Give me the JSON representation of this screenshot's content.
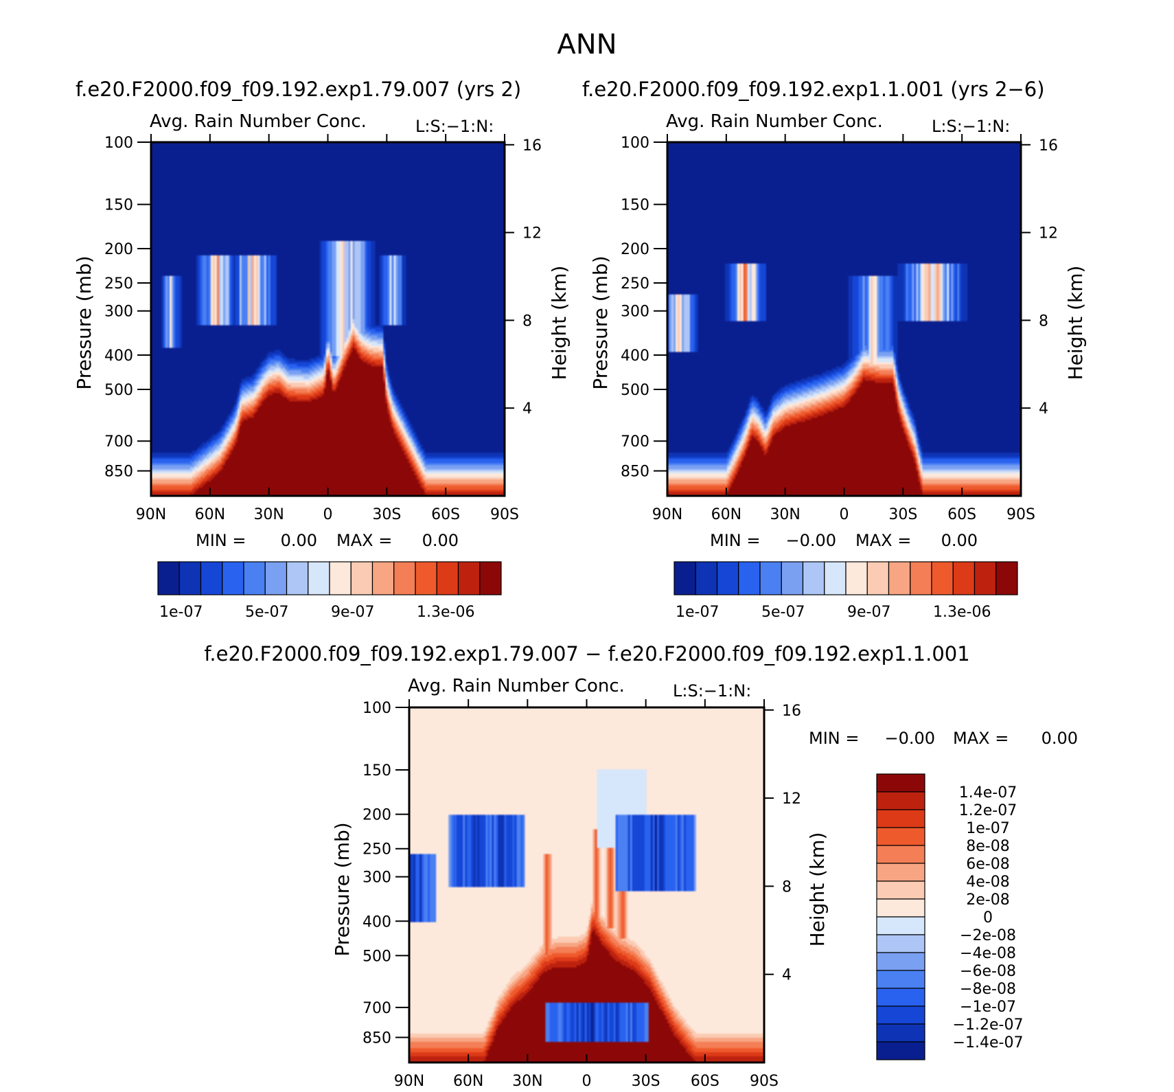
{
  "figure_title": "ANN",
  "chart_data": [
    {
      "type": "heatmap",
      "run_title": "f.e20.F2000.f09_f09.192.exp1.79.007 (yrs 2)",
      "subtitle": "Avg. Rain Number Conc.",
      "corner_label": "L:S:−1:N:",
      "xlabel": "",
      "ylabel": "Pressure (mb)",
      "ylabel_right": "Height (km)",
      "x_ticks": [
        "90N",
        "60N",
        "30N",
        "0",
        "30S",
        "60S",
        "90S"
      ],
      "y_ticks": [
        100,
        150,
        200,
        250,
        300,
        400,
        500,
        700,
        850
      ],
      "ylim": [
        100,
        1000
      ],
      "height_ticks": [
        16,
        12,
        8,
        4
      ],
      "stats": {
        "min_label": "MIN =",
        "min": "0.00",
        "max_label": "MAX =",
        "max": "0.00"
      },
      "colorbar": {
        "orientation": "horizontal",
        "tick_labels": [
          "1e-07",
          "5e-07",
          "9e-07",
          "1.3e-06"
        ],
        "colors": [
          "#0a1f8f",
          "#0e34b5",
          "#1546d6",
          "#2a62f0",
          "#4a80f2",
          "#7aa0f2",
          "#adc6f6",
          "#d6e6fb",
          "#fde8dc",
          "#fbcbb3",
          "#f8a583",
          "#f47e55",
          "#ef5a2d",
          "#dd3a18",
          "#bd220f",
          "#8c0808"
        ]
      },
      "field": {
        "base": "low",
        "core_levels_by_latitude": [
          [
            -90,
            1000
          ],
          [
            -70,
            1000
          ],
          [
            -55,
            860
          ],
          [
            -47,
            720
          ],
          [
            -44,
            620
          ],
          [
            -38,
            600
          ],
          [
            -33,
            545
          ],
          [
            -30,
            520
          ],
          [
            -25,
            510
          ],
          [
            -20,
            540
          ],
          [
            -10,
            545
          ],
          [
            -2,
            520
          ],
          [
            0,
            430
          ],
          [
            3,
            520
          ],
          [
            8,
            440
          ],
          [
            13,
            380
          ],
          [
            17,
            415
          ],
          [
            22,
            430
          ],
          [
            28,
            435
          ],
          [
            30,
            560
          ],
          [
            33,
            650
          ],
          [
            38,
            740
          ],
          [
            43,
            840
          ],
          [
            50,
            1000
          ],
          [
            90,
            1000
          ]
        ],
        "bands": [
          {
            "lat_center": -80,
            "lat_width": 6,
            "p_top": 240,
            "p_bottom": 380,
            "intensity": 0.55
          },
          {
            "lat_center": -56,
            "lat_width": 12,
            "p_top": 210,
            "p_bottom": 330,
            "intensity": 0.75
          },
          {
            "lat_center": -38,
            "lat_width": 14,
            "p_top": 210,
            "p_bottom": 330,
            "intensity": 0.7
          },
          {
            "lat_center": 10,
            "lat_width": 16,
            "p_top": 190,
            "p_bottom": 400,
            "intensity": 0.7
          },
          {
            "lat_center": 33,
            "lat_width": 8,
            "p_top": 210,
            "p_bottom": 330,
            "intensity": 0.55
          }
        ]
      }
    },
    {
      "type": "heatmap",
      "run_title": "f.e20.F2000.f09_f09.192.exp1.1.001 (yrs 2−6)",
      "subtitle": "Avg. Rain Number Conc.",
      "corner_label": "L:S:−1:N:",
      "xlabel": "",
      "ylabel": "Pressure (mb)",
      "ylabel_right": "Height (km)",
      "x_ticks": [
        "90N",
        "60N",
        "30N",
        "0",
        "30S",
        "60S",
        "90S"
      ],
      "y_ticks": [
        100,
        150,
        200,
        250,
        300,
        400,
        500,
        700,
        850
      ],
      "ylim": [
        100,
        1000
      ],
      "height_ticks": [
        16,
        12,
        8,
        4
      ],
      "stats": {
        "min_label": "MIN =",
        "min": "−0.00",
        "max_label": "MAX =",
        "max": "0.00"
      },
      "colorbar": {
        "orientation": "horizontal",
        "tick_labels": [
          "1e-07",
          "5e-07",
          "9e-07",
          "1.3e-06"
        ],
        "colors": [
          "#0a1f8f",
          "#0e34b5",
          "#1546d6",
          "#2a62f0",
          "#4a80f2",
          "#7aa0f2",
          "#adc6f6",
          "#d6e6fb",
          "#fde8dc",
          "#fbcbb3",
          "#f8a583",
          "#f47e55",
          "#ef5a2d",
          "#dd3a18",
          "#bd220f",
          "#8c0808"
        ]
      },
      "field": {
        "base": "low",
        "core_levels_by_latitude": [
          [
            -90,
            1000
          ],
          [
            -60,
            1000
          ],
          [
            -50,
            760
          ],
          [
            -47,
            680
          ],
          [
            -44,
            700
          ],
          [
            -40,
            770
          ],
          [
            -36,
            680
          ],
          [
            -30,
            640
          ],
          [
            -20,
            615
          ],
          [
            -10,
            590
          ],
          [
            0,
            560
          ],
          [
            5,
            520
          ],
          [
            10,
            470
          ],
          [
            18,
            480
          ],
          [
            25,
            480
          ],
          [
            28,
            600
          ],
          [
            32,
            700
          ],
          [
            36,
            800
          ],
          [
            40,
            1000
          ],
          [
            90,
            1000
          ]
        ],
        "bands": [
          {
            "lat_center": -83,
            "lat_width": 10,
            "p_top": 270,
            "p_bottom": 390,
            "intensity": 0.7
          },
          {
            "lat_center": -50,
            "lat_width": 12,
            "p_top": 220,
            "p_bottom": 320,
            "intensity": 0.85
          },
          {
            "lat_center": 15,
            "lat_width": 14,
            "p_top": 240,
            "p_bottom": 420,
            "intensity": 0.6
          },
          {
            "lat_center": 45,
            "lat_width": 20,
            "p_top": 220,
            "p_bottom": 320,
            "intensity": 0.75
          }
        ]
      }
    },
    {
      "type": "heatmap",
      "run_title": "f.e20.F2000.f09_f09.192.exp1.79.007 − f.e20.F2000.f09_f09.192.exp1.1.001",
      "subtitle": "Avg. Rain Number Conc.",
      "corner_label": "L:S:−1:N:",
      "xlabel": "",
      "ylabel": "Pressure (mb)",
      "ylabel_right": "Height (km)",
      "x_ticks": [
        "90N",
        "60N",
        "30N",
        "0",
        "30S",
        "60S",
        "90S"
      ],
      "y_ticks": [
        100,
        150,
        200,
        250,
        300,
        400,
        500,
        700,
        850
      ],
      "ylim": [
        100,
        1000
      ],
      "height_ticks": [
        16,
        12,
        8,
        4
      ],
      "stats": {
        "min_label": "MIN =",
        "min": "−0.00",
        "max_label": "MAX =",
        "max": "0.00"
      },
      "colorbar": {
        "orientation": "vertical",
        "tick_labels": [
          "1.4e-07",
          "1.2e-07",
          "1e-07",
          "8e-08",
          "6e-08",
          "4e-08",
          "2e-08",
          "0",
          "−2e-08",
          "−4e-08",
          "−6e-08",
          "−8e-08",
          "−1e-07",
          "−1.2e-07",
          "−1.4e-07"
        ],
        "colors": [
          "#8c0808",
          "#bd220f",
          "#dd3a18",
          "#ef5a2d",
          "#f47e55",
          "#f8a583",
          "#fbcbb3",
          "#fde8dc",
          "#d6e6fb",
          "#adc6f6",
          "#7aa0f2",
          "#4a80f2",
          "#2a62f0",
          "#1546d6",
          "#0e34b5",
          "#0a1f8f"
        ]
      },
      "field": {
        "base": "zero",
        "core_levels_by_latitude": [
          [
            -90,
            1000
          ],
          [
            -52,
            1000
          ],
          [
            -45,
            800
          ],
          [
            -38,
            700
          ],
          [
            -30,
            640
          ],
          [
            -22,
            560
          ],
          [
            -15,
            540
          ],
          [
            -5,
            540
          ],
          [
            0,
            520
          ],
          [
            3,
            420
          ],
          [
            8,
            470
          ],
          [
            15,
            520
          ],
          [
            25,
            560
          ],
          [
            32,
            620
          ],
          [
            38,
            720
          ],
          [
            45,
            850
          ],
          [
            55,
            1000
          ],
          [
            90,
            1000
          ]
        ],
        "neg_blobs": [
          {
            "lat_center": -86,
            "lat_width": 10,
            "p_top": 260,
            "p_bottom": 400,
            "intensity": 0.9
          },
          {
            "lat_center": -58,
            "lat_width": 12,
            "p_top": 200,
            "p_bottom": 320,
            "intensity": 0.85
          },
          {
            "lat_center": -41,
            "lat_width": 10,
            "p_top": 200,
            "p_bottom": 320,
            "intensity": 0.9
          },
          {
            "lat_center": 35,
            "lat_width": 20,
            "p_top": 200,
            "p_bottom": 330,
            "intensity": 0.9
          },
          {
            "lat_center": 5,
            "lat_width": 26,
            "p_top": 680,
            "p_bottom": 870,
            "intensity": 0.95
          }
        ],
        "pos_streaks": [
          {
            "lat_center": -20,
            "lat_width": 3,
            "p_top": 260,
            "p_bottom": 500,
            "intensity": 0.6
          },
          {
            "lat_center": 5,
            "lat_width": 3,
            "p_top": 220,
            "p_bottom": 460,
            "intensity": 0.6
          },
          {
            "lat_center": 12,
            "lat_width": 3,
            "p_top": 230,
            "p_bottom": 420,
            "intensity": 0.6
          },
          {
            "lat_center": 18,
            "lat_width": 4,
            "p_top": 220,
            "p_bottom": 450,
            "intensity": 0.6
          }
        ],
        "light_blue_region": {
          "lat_from": 5,
          "lat_to": 30,
          "p_top": 150,
          "p_bottom": 250
        }
      }
    }
  ]
}
